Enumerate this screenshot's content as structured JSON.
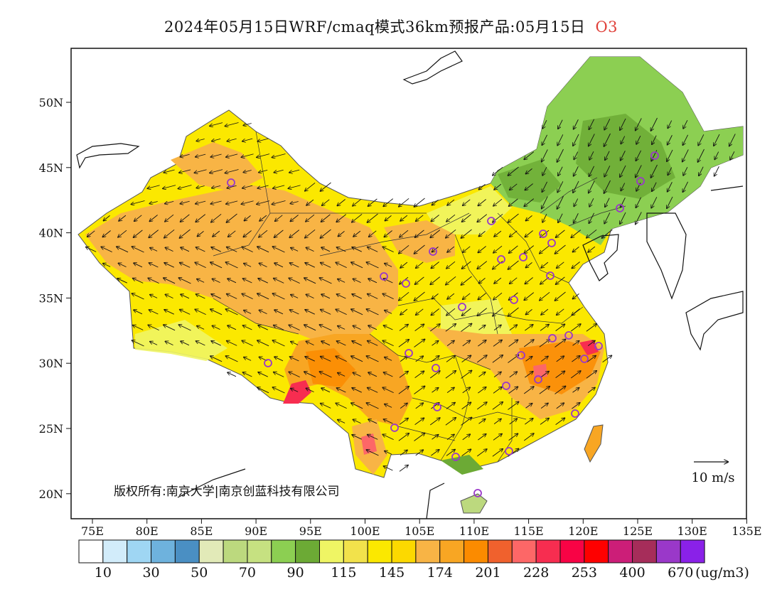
{
  "title": {
    "main": "2024年05月15日WRF/cmaq模式36km预报产品:05月15日",
    "species": "O3"
  },
  "axes": {
    "lon_ticks": [
      "75E",
      "80E",
      "85E",
      "90E",
      "95E",
      "100E",
      "105E",
      "110E",
      "115E",
      "120E",
      "125E",
      "130E",
      "135E"
    ],
    "lat_ticks": [
      "50N",
      "45N",
      "40N",
      "35N",
      "30N",
      "25N",
      "20N"
    ]
  },
  "copyright": "版权所有:南京大学|南京创蓝科技有限公司",
  "wind_legend": {
    "label": "10 m/s"
  },
  "colorbar": {
    "unit": "(ug/m3)",
    "labels": [
      "10",
      "30",
      "50",
      "70",
      "90",
      "115",
      "145",
      "174",
      "201",
      "228",
      "253",
      "400",
      "670"
    ],
    "colors": [
      "#ffffff",
      "#d2ecfa",
      "#9fd6f3",
      "#6eb2dd",
      "#4a8fc3",
      "#e2eab8",
      "#bcd97e",
      "#c6e181",
      "#8ccf52",
      "#6caa35",
      "#eff564",
      "#f2e24b",
      "#fbe800",
      "#fcd900",
      "#f8b445",
      "#f8a623",
      "#fb8b00",
      "#f0612d",
      "#fd6767",
      "#f72d50",
      "#f80345",
      "#fe0000",
      "#cc1e78",
      "#a62d5a",
      "#9a38c9",
      "#8a21e8"
    ]
  },
  "map_colors": {
    "northeast_green": "#8ccf52",
    "dark_green": "#6caa35",
    "yellow": "#fbe800",
    "light_yellow": "#eff564",
    "orange": "#f8b445",
    "dark_orange": "#fb8b00",
    "red": "#f72d50",
    "station_marker": "#9a38c9"
  }
}
